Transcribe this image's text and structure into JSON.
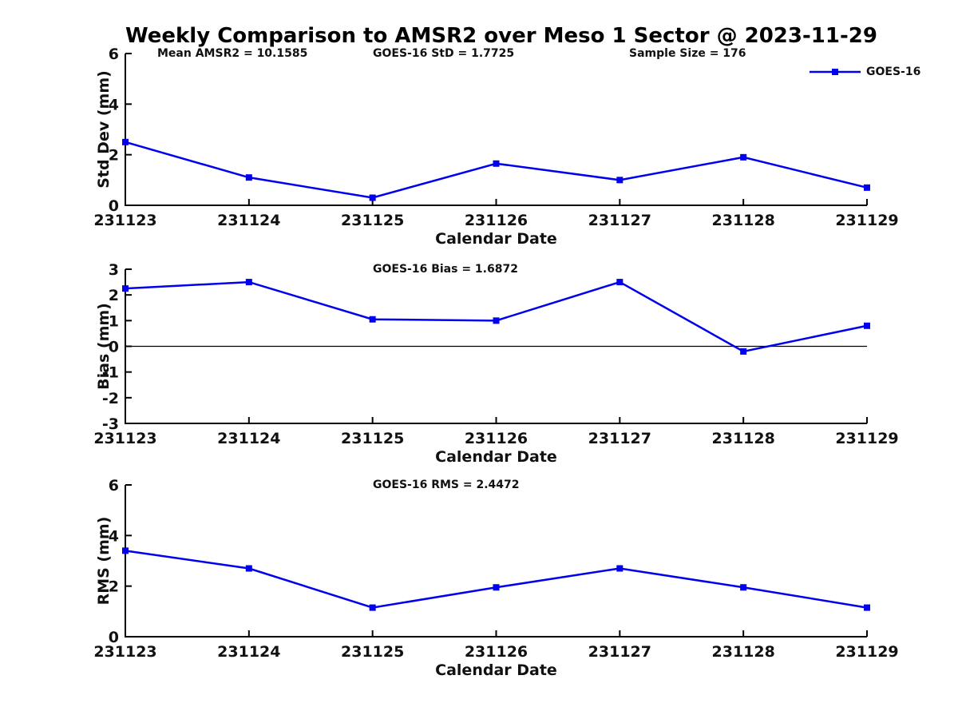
{
  "title": "Weekly Comparison to AMSR2 over Meso 1 Sector @ 2023-11-29",
  "header_annotations": {
    "mean_amsr2": "Mean AMSR2 = 10.1585",
    "goes_std": "GOES-16 StD = 1.7725",
    "sample_size": "Sample Size = 176"
  },
  "legend": {
    "label": "GOES-16",
    "marker": "square",
    "position": "top-right"
  },
  "style": {
    "line_color": "#0000EE",
    "axis_color": "#000000",
    "text_color": "#111111",
    "background": "#ffffff",
    "grid": false
  },
  "chart_data": [
    {
      "id": "std-dev",
      "type": "line",
      "series_name": "GOES-16",
      "categories": [
        "231123",
        "231124",
        "231125",
        "231126",
        "231127",
        "231128",
        "231129"
      ],
      "values": [
        2.5,
        1.1,
        0.3,
        1.65,
        1.0,
        1.9,
        0.7
      ],
      "xlabel": "Calendar Date",
      "ylabel": "Std Dev (mm)",
      "ylim": [
        0,
        6
      ],
      "yticks": [
        0,
        2,
        4,
        6
      ],
      "zero_line": false,
      "subtitle": ""
    },
    {
      "id": "bias",
      "type": "line",
      "series_name": "GOES-16",
      "categories": [
        "231123",
        "231124",
        "231125",
        "231126",
        "231127",
        "231128",
        "231129"
      ],
      "values": [
        2.25,
        2.5,
        1.05,
        1.0,
        2.5,
        -0.2,
        0.8
      ],
      "xlabel": "Calendar Date",
      "ylabel": "Bias (mm)",
      "ylim": [
        -3,
        3
      ],
      "yticks": [
        -3,
        -2,
        -1,
        0,
        1,
        2,
        3
      ],
      "zero_line": true,
      "subtitle": "GOES-16 Bias  = 1.6872"
    },
    {
      "id": "rms",
      "type": "line",
      "series_name": "GOES-16",
      "categories": [
        "231123",
        "231124",
        "231125",
        "231126",
        "231127",
        "231128",
        "231129"
      ],
      "values": [
        3.4,
        2.7,
        1.15,
        1.95,
        2.7,
        1.95,
        1.15
      ],
      "xlabel": "Calendar Date",
      "ylabel": "RMS (mm)",
      "ylim": [
        0,
        6
      ],
      "yticks": [
        0,
        2,
        4,
        6
      ],
      "zero_line": false,
      "subtitle": "GOES-16 RMS = 2.4472"
    }
  ]
}
